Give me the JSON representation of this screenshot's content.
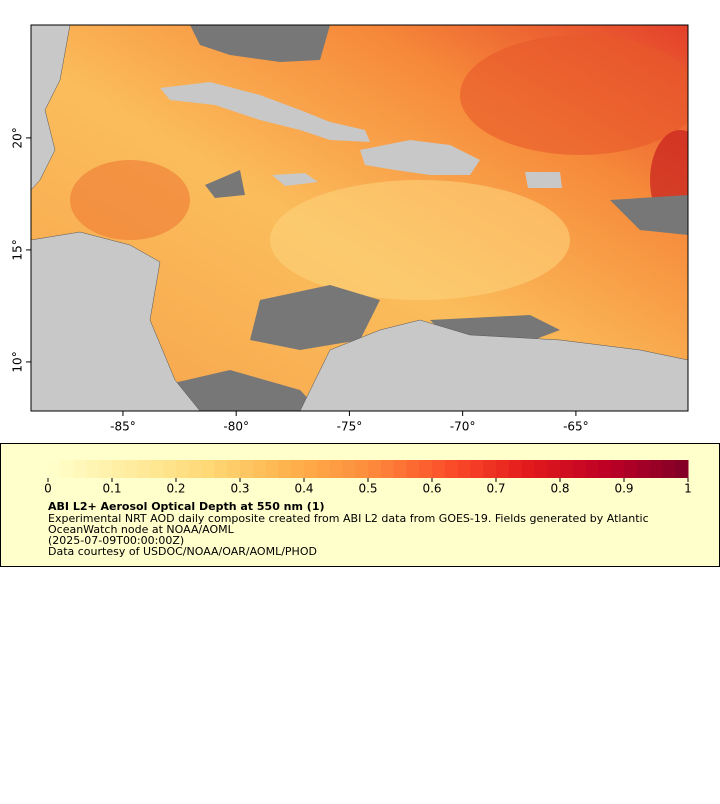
{
  "chart_data": {
    "type": "map",
    "xlim": [
      -89.06,
      -60.05
    ],
    "ylim": [
      7.81,
      25.04
    ],
    "xticks": [
      {
        "value": -85,
        "label": "-85°"
      },
      {
        "value": -80,
        "label": "-80°"
      },
      {
        "value": -75,
        "label": "-75°"
      },
      {
        "value": -70,
        "label": "-70°"
      },
      {
        "value": -65,
        "label": "-65°"
      }
    ],
    "yticks": [
      {
        "value": 10,
        "label": "10°"
      },
      {
        "value": 15,
        "label": "15°"
      },
      {
        "value": 20,
        "label": "20°"
      }
    ],
    "colorbar": {
      "range": [
        0,
        1
      ],
      "ticks": [
        0,
        0.1,
        0.2,
        0.3,
        0.4,
        0.5,
        0.6,
        0.7,
        0.8,
        0.9,
        1
      ],
      "colors": [
        "#ffffcc",
        "#ffeda0",
        "#fed976",
        "#feb24c",
        "#fd8d3c",
        "#fc4e2a",
        "#e31a1c",
        "#bd0026",
        "#800026"
      ]
    },
    "title": "ABI L2+ Aerosol Optical Depth at 550 nm (1)",
    "description": [
      "Experimental NRT AOD daily composite created from ABI L2 data from GOES-19. Fields generated by Atlantic",
      "OceanWatch node at NOAA/AOML",
      "(2025-07-09T00:00:00Z)",
      "Data courtesy of USDOC/NOAA/OAR/AOML/PHOD"
    ]
  }
}
